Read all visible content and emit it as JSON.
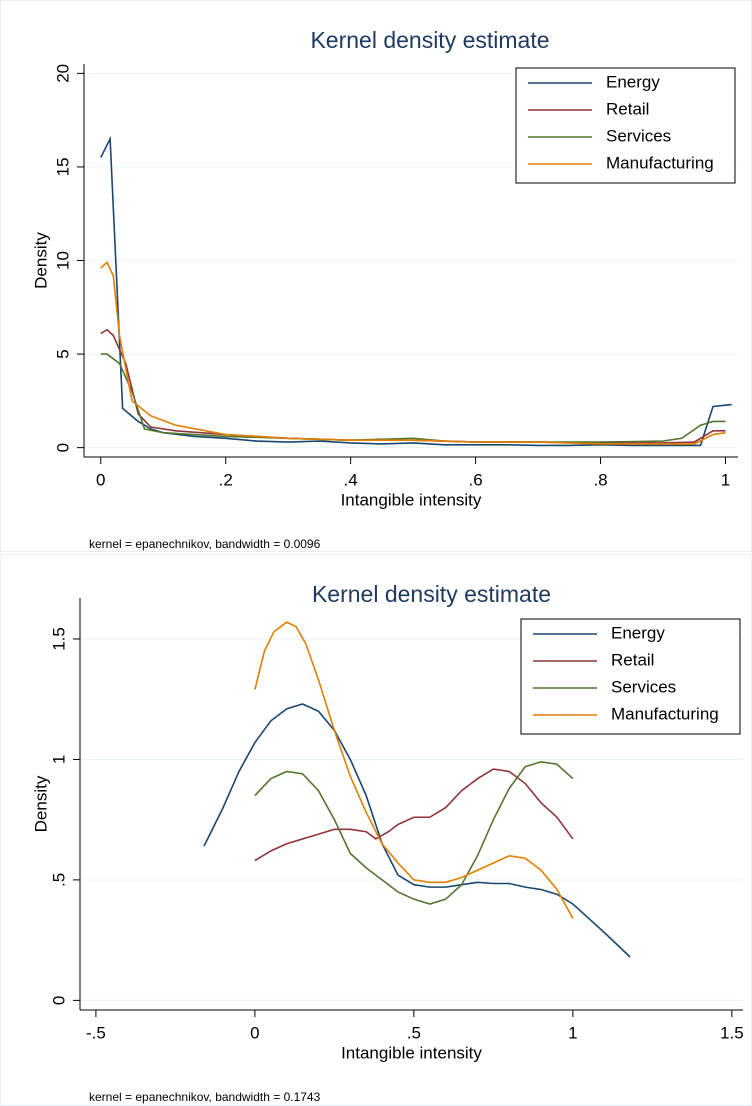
{
  "chart_data": [
    {
      "type": "line",
      "title": "Kernel density estimate",
      "x_label": "Intangible intensity",
      "y_label": "Density",
      "note": "kernel = epanechnikov, bandwidth = 0.0096",
      "xlim": [
        -0.03,
        1.02
      ],
      "ylim": [
        -0.5,
        20.5
      ],
      "xticks": [
        0,
        {
          "value": 0.2,
          "label": ".2"
        },
        {
          "value": 0.4,
          "label": ".4"
        },
        {
          "value": 0.6,
          "label": ".6"
        },
        {
          "value": 0.8,
          "label": ".8"
        },
        1
      ],
      "yticks": [
        0,
        5,
        10,
        15,
        20
      ],
      "grid": true,
      "legend": "top-right",
      "series": [
        {
          "name": "Energy",
          "color": "#1a476f",
          "x": [
            0,
            0.015,
            0.035,
            0.06,
            0.08,
            0.1,
            0.15,
            0.2,
            0.25,
            0.3,
            0.35,
            0.4,
            0.45,
            0.5,
            0.55,
            0.6,
            0.65,
            0.7,
            0.75,
            0.8,
            0.85,
            0.9,
            0.96,
            0.98,
            1.01
          ],
          "values": [
            15.5,
            16.5,
            2.1,
            1.4,
            1.0,
            0.8,
            0.6,
            0.5,
            0.35,
            0.3,
            0.35,
            0.25,
            0.2,
            0.25,
            0.15,
            0.15,
            0.15,
            0.12,
            0.12,
            0.15,
            0.12,
            0.12,
            0.12,
            2.2,
            2.3
          ]
        },
        {
          "name": "Retail",
          "color": "#90353b",
          "x": [
            0,
            0.01,
            0.02,
            0.04,
            0.06,
            0.08,
            0.12,
            0.2,
            0.3,
            0.4,
            0.5,
            0.6,
            0.7,
            0.8,
            0.9,
            0.95,
            0.98,
            1
          ],
          "values": [
            6.1,
            6.3,
            6.0,
            4.5,
            1.8,
            1.1,
            0.9,
            0.7,
            0.5,
            0.4,
            0.4,
            0.3,
            0.3,
            0.25,
            0.25,
            0.3,
            0.9,
            0.9
          ]
        },
        {
          "name": "Services",
          "color": "#55752f",
          "x": [
            0,
            0.01,
            0.03,
            0.05,
            0.07,
            0.1,
            0.15,
            0.2,
            0.3,
            0.4,
            0.5,
            0.55,
            0.6,
            0.7,
            0.8,
            0.9,
            0.93,
            0.96,
            0.98,
            1
          ],
          "values": [
            5.0,
            5.0,
            4.5,
            3.0,
            1.0,
            0.8,
            0.7,
            0.6,
            0.5,
            0.4,
            0.5,
            0.35,
            0.3,
            0.3,
            0.3,
            0.35,
            0.5,
            1.2,
            1.4,
            1.4
          ]
        },
        {
          "name": "Manufacturing",
          "color": "#e37e00",
          "x": [
            0,
            0.01,
            0.02,
            0.03,
            0.05,
            0.08,
            0.12,
            0.2,
            0.3,
            0.4,
            0.5,
            0.6,
            0.7,
            0.8,
            0.9,
            0.95,
            0.98,
            1
          ],
          "values": [
            9.6,
            9.9,
            9.2,
            6.0,
            2.5,
            1.7,
            1.2,
            0.7,
            0.5,
            0.4,
            0.4,
            0.3,
            0.3,
            0.2,
            0.2,
            0.2,
            0.7,
            0.8
          ]
        }
      ]
    },
    {
      "type": "line",
      "title": "Kernel density estimate",
      "x_label": "Intangible intensity",
      "y_label": "Density",
      "note": "kernel = epanechnikov, bandwidth = 0.1743",
      "xlim": [
        -0.55,
        1.535
      ],
      "ylim": [
        -0.04,
        1.67
      ],
      "xticks": [
        {
          "value": -0.5,
          "label": "-.5"
        },
        0,
        {
          "value": 0.5,
          "label": ".5"
        },
        1,
        1.5
      ],
      "yticks": [
        0,
        {
          "value": 0.5,
          "label": ".5"
        },
        1,
        1.5
      ],
      "grid": true,
      "legend": "top-right",
      "series": [
        {
          "name": "Energy",
          "color": "#1a476f",
          "x": [
            -0.16,
            -0.1,
            -0.05,
            0,
            0.05,
            0.1,
            0.15,
            0.2,
            0.25,
            0.3,
            0.35,
            0.4,
            0.45,
            0.5,
            0.55,
            0.6,
            0.65,
            0.7,
            0.75,
            0.8,
            0.85,
            0.9,
            0.95,
            1.0,
            1.05,
            1.1,
            1.18
          ],
          "values": [
            0.64,
            0.8,
            0.95,
            1.07,
            1.16,
            1.21,
            1.23,
            1.2,
            1.12,
            1.0,
            0.85,
            0.65,
            0.52,
            0.48,
            0.47,
            0.47,
            0.48,
            0.49,
            0.485,
            0.485,
            0.47,
            0.46,
            0.44,
            0.4,
            0.34,
            0.28,
            0.18
          ]
        },
        {
          "name": "Retail",
          "color": "#90353b",
          "x": [
            0,
            0.05,
            0.1,
            0.15,
            0.2,
            0.25,
            0.3,
            0.35,
            0.38,
            0.42,
            0.45,
            0.5,
            0.55,
            0.6,
            0.65,
            0.7,
            0.75,
            0.8,
            0.85,
            0.9,
            0.95,
            1.0
          ],
          "values": [
            0.58,
            0.62,
            0.65,
            0.67,
            0.69,
            0.71,
            0.71,
            0.7,
            0.67,
            0.7,
            0.73,
            0.76,
            0.76,
            0.8,
            0.87,
            0.92,
            0.96,
            0.95,
            0.9,
            0.82,
            0.76,
            0.67
          ]
        },
        {
          "name": "Services",
          "color": "#55752f",
          "x": [
            0,
            0.05,
            0.1,
            0.15,
            0.2,
            0.25,
            0.3,
            0.35,
            0.4,
            0.45,
            0.5,
            0.55,
            0.6,
            0.65,
            0.7,
            0.75,
            0.8,
            0.85,
            0.9,
            0.95,
            1.0
          ],
          "values": [
            0.85,
            0.92,
            0.95,
            0.94,
            0.87,
            0.75,
            0.61,
            0.55,
            0.5,
            0.45,
            0.42,
            0.4,
            0.42,
            0.48,
            0.6,
            0.75,
            0.88,
            0.97,
            0.99,
            0.98,
            0.92
          ]
        },
        {
          "name": "Manufacturing",
          "color": "#e37e00",
          "x": [
            0,
            0.03,
            0.06,
            0.1,
            0.13,
            0.16,
            0.2,
            0.25,
            0.3,
            0.35,
            0.4,
            0.45,
            0.5,
            0.55,
            0.6,
            0.65,
            0.7,
            0.75,
            0.8,
            0.85,
            0.9,
            0.95,
            1.0
          ],
          "values": [
            1.29,
            1.45,
            1.53,
            1.57,
            1.55,
            1.48,
            1.33,
            1.12,
            0.93,
            0.78,
            0.65,
            0.57,
            0.5,
            0.49,
            0.49,
            0.51,
            0.54,
            0.57,
            0.6,
            0.59,
            0.54,
            0.46,
            0.34
          ]
        }
      ]
    }
  ]
}
